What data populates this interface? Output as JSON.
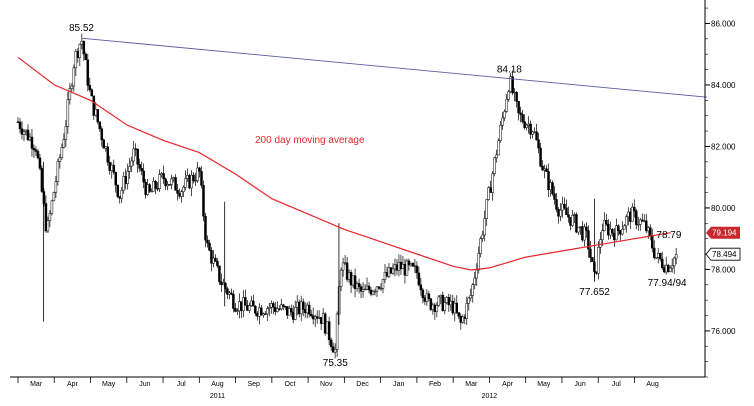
{
  "chart_data": {
    "type": "candlestick",
    "title": "",
    "xlabel": "",
    "ylabel": "",
    "ylim": [
      74.5,
      86.6
    ],
    "yticks": [
      "86.000",
      "84.000",
      "82.000",
      "80.000",
      "78.000",
      "76.000"
    ],
    "xticks": [
      "Mar",
      "Apr",
      "May",
      "Jun",
      "Jul",
      "Aug",
      "Sep",
      "Oct",
      "Nov",
      "Dec",
      "Jan",
      "Feb",
      "Mar",
      "Apr",
      "May",
      "Jun",
      "Jul",
      "Aug"
    ],
    "years": [
      "2011",
      "2012"
    ],
    "moving_average_label": "200 day moving average",
    "price_path": [
      {
        "m": 0.0,
        "v": 82.8
      },
      {
        "m": 0.5,
        "v": 82.0
      },
      {
        "m": 0.8,
        "v": 79.2
      },
      {
        "m": 1.0,
        "v": 80.6
      },
      {
        "m": 1.3,
        "v": 82.6
      },
      {
        "m": 1.55,
        "v": 84.8
      },
      {
        "m": 1.75,
        "v": 85.52
      },
      {
        "m": 2.0,
        "v": 83.6
      },
      {
        "m": 2.4,
        "v": 82.0
      },
      {
        "m": 2.8,
        "v": 80.4
      },
      {
        "m": 3.2,
        "v": 81.8
      },
      {
        "m": 3.6,
        "v": 80.4
      },
      {
        "m": 4.0,
        "v": 81.0
      },
      {
        "m": 4.5,
        "v": 80.6
      },
      {
        "m": 5.0,
        "v": 81.2
      },
      {
        "m": 5.2,
        "v": 78.8
      },
      {
        "m": 5.6,
        "v": 77.6
      },
      {
        "m": 6.0,
        "v": 76.9
      },
      {
        "m": 6.5,
        "v": 76.7
      },
      {
        "m": 7.0,
        "v": 76.8
      },
      {
        "m": 7.5,
        "v": 76.6
      },
      {
        "m": 8.0,
        "v": 76.8
      },
      {
        "m": 8.4,
        "v": 76.4
      },
      {
        "m": 8.75,
        "v": 75.35
      },
      {
        "m": 8.9,
        "v": 78.2
      },
      {
        "m": 9.2,
        "v": 77.6
      },
      {
        "m": 9.5,
        "v": 77.2
      },
      {
        "m": 10.0,
        "v": 77.6
      },
      {
        "m": 10.5,
        "v": 78.1
      },
      {
        "m": 11.0,
        "v": 77.9
      },
      {
        "m": 11.3,
        "v": 76.9
      },
      {
        "m": 11.7,
        "v": 76.9
      },
      {
        "m": 12.0,
        "v": 76.8
      },
      {
        "m": 12.2,
        "v": 76.2
      },
      {
        "m": 12.5,
        "v": 77.2
      },
      {
        "m": 12.8,
        "v": 79.2
      },
      {
        "m": 13.1,
        "v": 81.2
      },
      {
        "m": 13.35,
        "v": 82.8
      },
      {
        "m": 13.55,
        "v": 84.18
      },
      {
        "m": 13.8,
        "v": 83.0
      },
      {
        "m": 14.2,
        "v": 82.6
      },
      {
        "m": 14.5,
        "v": 81.2
      },
      {
        "m": 14.9,
        "v": 80.0
      },
      {
        "m": 15.3,
        "v": 79.6
      },
      {
        "m": 15.7,
        "v": 79.0
      },
      {
        "m": 15.9,
        "v": 77.652
      },
      {
        "m": 16.1,
        "v": 79.4
      },
      {
        "m": 16.5,
        "v": 79.2
      },
      {
        "m": 16.9,
        "v": 79.8
      },
      {
        "m": 17.3,
        "v": 79.4
      },
      {
        "m": 17.6,
        "v": 78.4
      },
      {
        "m": 17.9,
        "v": 78.1
      },
      {
        "m": 18.2,
        "v": 78.5
      }
    ],
    "spikes": [
      {
        "m": 0.7,
        "lo": 76.3,
        "hi": 81.5
      },
      {
        "m": 8.85,
        "lo": 76.2,
        "hi": 79.5
      },
      {
        "m": 5.7,
        "lo": 76.8,
        "hi": 80.2
      },
      {
        "m": 15.9,
        "lo": 77.6,
        "hi": 80.3
      }
    ],
    "ma_path": [
      {
        "m": 0.0,
        "v": 84.9
      },
      {
        "m": 1.0,
        "v": 84.0
      },
      {
        "m": 2.0,
        "v": 83.5
      },
      {
        "m": 3.0,
        "v": 82.7
      },
      {
        "m": 4.0,
        "v": 82.2
      },
      {
        "m": 5.0,
        "v": 81.8
      },
      {
        "m": 6.0,
        "v": 81.1
      },
      {
        "m": 7.0,
        "v": 80.3
      },
      {
        "m": 8.0,
        "v": 79.8
      },
      {
        "m": 9.0,
        "v": 79.3
      },
      {
        "m": 10.0,
        "v": 78.9
      },
      {
        "m": 11.0,
        "v": 78.5
      },
      {
        "m": 12.0,
        "v": 78.1
      },
      {
        "m": 12.5,
        "v": 77.98
      },
      {
        "m": 13.0,
        "v": 78.05
      },
      {
        "m": 14.0,
        "v": 78.4
      },
      {
        "m": 15.0,
        "v": 78.6
      },
      {
        "m": 16.0,
        "v": 78.8
      },
      {
        "m": 17.0,
        "v": 79.0
      },
      {
        "m": 18.0,
        "v": 79.194
      }
    ],
    "trendline": {
      "start": {
        "m": 1.75,
        "v": 85.52
      },
      "end": {
        "m": 19.0,
        "v": 83.6
      }
    },
    "annotations": [
      {
        "text": "85.52",
        "m": 1.75,
        "v": 85.52,
        "pos": "above"
      },
      {
        "text": "84.18",
        "m": 13.55,
        "v": 84.18,
        "pos": "above"
      },
      {
        "text": "75.35",
        "m": 8.75,
        "v": 75.35,
        "pos": "below"
      },
      {
        "text": "77.652",
        "m": 15.9,
        "v": 77.652,
        "pos": "below"
      },
      {
        "text": "78.79",
        "m": 17.95,
        "v": 78.79,
        "pos": "above"
      },
      {
        "text": "77.94/94",
        "m": 17.9,
        "v": 77.94,
        "pos": "below"
      }
    ],
    "last_price": {
      "text": "78.494",
      "value": 78.494
    },
    "ma_last": {
      "text": "79.194",
      "value": 79.194
    },
    "colors": {
      "price": "#000000",
      "moving_average": "#e8262a",
      "trendline": "#5a5aa6",
      "ma_badge": "#c9272d"
    }
  }
}
